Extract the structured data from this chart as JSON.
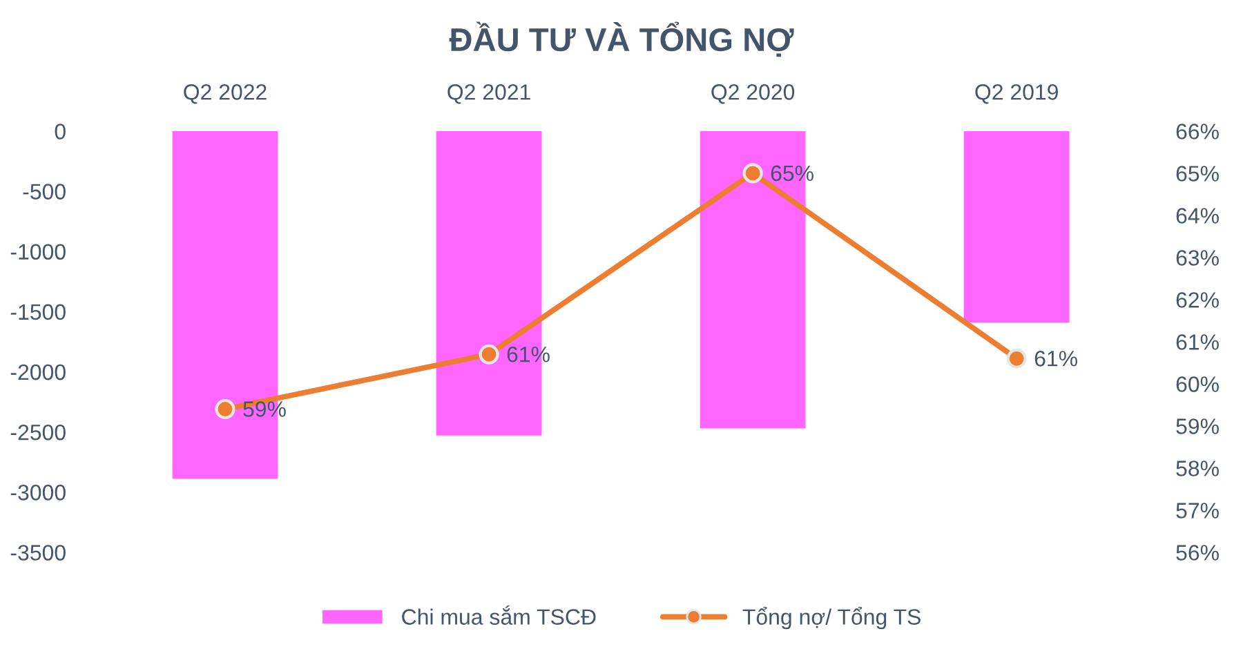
{
  "chart_data": {
    "type": "bar",
    "title": "ĐẦU TƯ VÀ TỔNG NỢ",
    "categories": [
      "Q2 2022",
      "Q2 2021",
      "Q2 2020",
      "Q2 2019"
    ],
    "series": [
      {
        "name": "Chi mua sắm TSCĐ",
        "color": "#ff66ff",
        "values": [
          -2890,
          -2530,
          -2470,
          -1590
        ]
      },
      {
        "name": "Tổng nợ/ Tổng TS",
        "type": "line",
        "axis": "y2",
        "color": "#ed7d31",
        "values": [
          59.4,
          60.7,
          65.0,
          60.6
        ],
        "value_labels": [
          "59%",
          "61%",
          "65%",
          "61%"
        ]
      }
    ],
    "ylim": [
      -3500,
      0
    ],
    "yticks": [
      0,
      -500,
      -1000,
      -1500,
      -2000,
      -2500,
      -3000,
      -3500
    ],
    "y2lim": [
      56,
      66
    ],
    "y2ticks": [
      {
        "value": 56,
        "label": "56%"
      },
      {
        "value": 57,
        "label": "57%"
      },
      {
        "value": 58,
        "label": "58%"
      },
      {
        "value": 59,
        "label": "59%"
      },
      {
        "value": 60,
        "label": "60%"
      },
      {
        "value": 61,
        "label": "61%"
      },
      {
        "value": 62,
        "label": "62%"
      },
      {
        "value": 63,
        "label": "63%"
      },
      {
        "value": 64,
        "label": "64%"
      },
      {
        "value": 65,
        "label": "65%"
      },
      {
        "value": 66,
        "label": "66%"
      }
    ],
    "marker": "circle",
    "legend": "bottom",
    "grid": false
  }
}
